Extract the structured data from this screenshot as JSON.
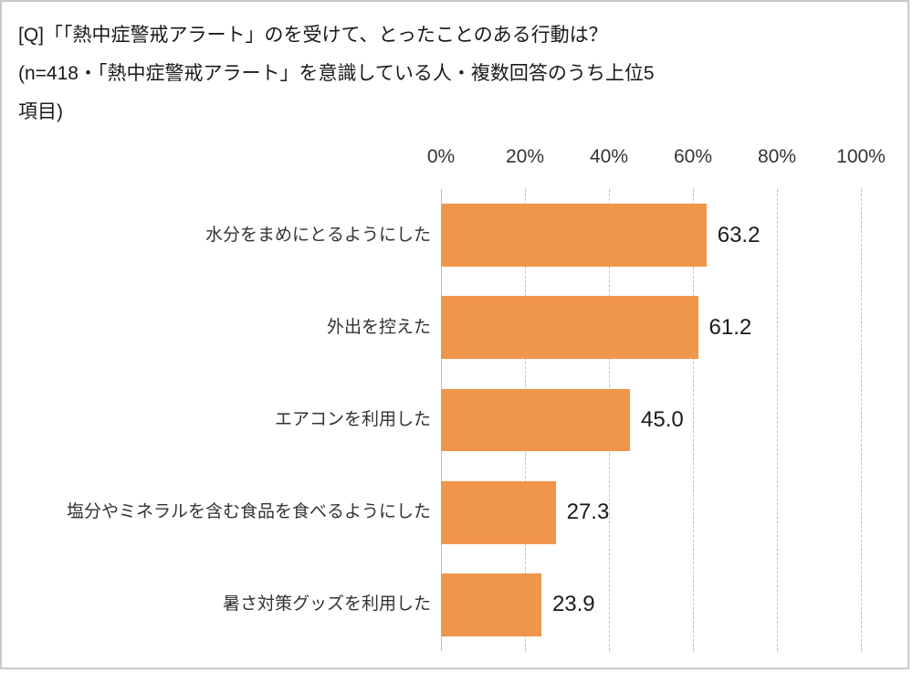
{
  "title": {
    "line1": "[Q]「「熱中症警戒アラート」のを受けて、とったことのある行動は？",
    "line2": "(n=418・「熱中症警戒アラート」を意識している人・複数回答のうち上位5",
    "line3": "項目)"
  },
  "chart_data": {
    "type": "bar",
    "orientation": "horizontal",
    "title": "[Q]「「熱中症警戒アラート」のを受けて、とったことのある行動は？(n=418・「熱中症警戒アラート」を意識している人・複数回答のうち上位5項目)",
    "categories": [
      "水分をまめにとるようにした",
      "外出を控えた",
      "エアコンを利用した",
      "塩分やミネラルを含む食品を食べるようにした",
      "暑さ対策グッズを利用した"
    ],
    "values": [
      63.2,
      61.2,
      45.0,
      27.3,
      23.9
    ],
    "value_labels": [
      "63.2",
      "61.2",
      "45.0",
      "27.3",
      "23.9"
    ],
    "x_ticks": [
      "0%",
      "20%",
      "40%",
      "60%",
      "80%",
      "100%"
    ],
    "xlim": [
      0,
      100
    ],
    "xlabel": "",
    "ylabel": "",
    "grid": "vertical-dashed",
    "legend": "none",
    "bar_color": "#f0964b",
    "gridline_color": "#bfbfbf"
  }
}
